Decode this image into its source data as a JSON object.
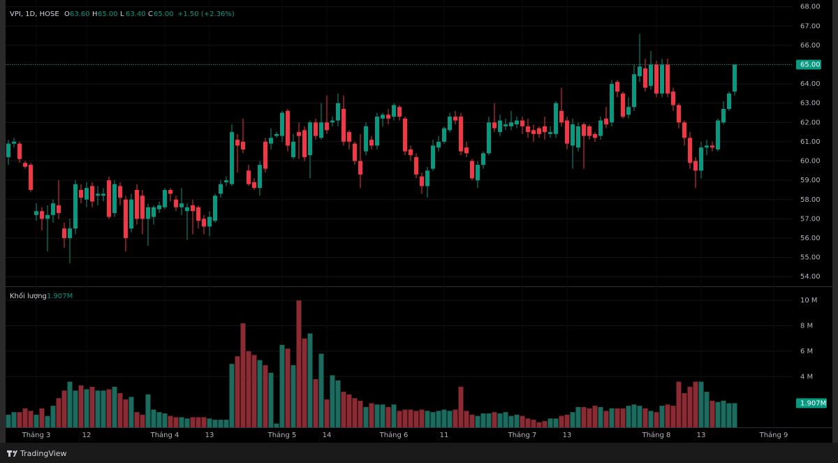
{
  "chart_data": {
    "type": "candlestick",
    "title": "VPI, 1D, HOSE",
    "header": [
      {
        "key": "O",
        "value": "63.60"
      },
      {
        "key": "H",
        "value": "65.00"
      },
      {
        "key": "L",
        "value": "63.40"
      },
      {
        "key": "C",
        "value": "65.00"
      }
    ],
    "change": "+1.50 (+2.36%)",
    "open": [
      60.2,
      60.9,
      60.9,
      59.9,
      59.8,
      57.2,
      57.4,
      57.0,
      57.2,
      57.7,
      56.5,
      56.0,
      56.5,
      58.5,
      58.0,
      58.7,
      58.2,
      58.2,
      59.0,
      57.3,
      58.7,
      58.0,
      56.5,
      58.5,
      58.2,
      57.0,
      57.1,
      57.5,
      57.6,
      58.5,
      58.0,
      57.6,
      57.4,
      57.7,
      57.6,
      57.0,
      56.6,
      56.9,
      58.3,
      58.9,
      58.8,
      61.1,
      61.0,
      59.5,
      58.9,
      58.6,
      61.0,
      60.9,
      61.3,
      61.3,
      62.6,
      60.2,
      61.5,
      61.6,
      60.3,
      62.0,
      61.2,
      62.0,
      62.0,
      62.1,
      62.7,
      61.5,
      60.9,
      60.0,
      60.5,
      61.1,
      60.8,
      62.2,
      62.4,
      62.3,
      62.8,
      62.2,
      60.6,
      60.2,
      59.2,
      58.7,
      59.6,
      60.7,
      61.0,
      61.6,
      62.3,
      62.3,
      60.7,
      60.0,
      59.0,
      59.8,
      60.4,
      62.0,
      61.5,
      61.8,
      61.8,
      61.9,
      62.1,
      61.8,
      61.6,
      61.7,
      61.8,
      61.4,
      61.4,
      62.6,
      62.1,
      60.8,
      60.7,
      61.9,
      61.8,
      61.4,
      61.3,
      62.2,
      62.0,
      64.1,
      63.5,
      62.4,
      62.8,
      64.4,
      64.8,
      63.9,
      65.0,
      63.5,
      65.0,
      63.6,
      62.9,
      62.0,
      61.2,
      60.0,
      59.5,
      60.7,
      60.8,
      60.6,
      62.0,
      62.7,
      63.6
    ],
    "high": [
      61.1,
      61.2,
      61.0,
      60.0,
      59.9,
      57.8,
      57.6,
      57.7,
      58.0,
      59.0,
      56.8,
      57.0,
      59.0,
      58.8,
      58.9,
      58.9,
      58.7,
      58.6,
      59.2,
      59.0,
      58.9,
      58.2,
      58.3,
      58.8,
      58.5,
      57.8,
      57.7,
      57.9,
      58.6,
      58.6,
      58.2,
      58.6,
      57.8,
      58.0,
      57.7,
      57.2,
      57.4,
      58.3,
      59.0,
      59.2,
      61.9,
      61.4,
      62.2,
      59.8,
      59.1,
      60.0,
      61.2,
      61.7,
      61.5,
      62.6,
      62.7,
      61.4,
      62.0,
      61.8,
      62.1,
      62.2,
      63.0,
      63.4,
      62.3,
      63.5,
      63.4,
      61.6,
      61.0,
      61.4,
      62.0,
      61.3,
      62.5,
      62.5,
      62.7,
      63.0,
      62.9,
      62.3,
      60.8,
      60.4,
      59.4,
      59.7,
      61.1,
      61.3,
      61.8,
      62.5,
      62.6,
      62.5,
      61.0,
      60.1,
      60.0,
      60.5,
      62.3,
      63.0,
      62.4,
      62.2,
      62.6,
      62.3,
      62.3,
      62.2,
      61.9,
      61.8,
      62.3,
      61.8,
      63.1,
      63.8,
      62.3,
      62.2,
      62.0,
      62.0,
      61.9,
      61.5,
      62.3,
      62.8,
      64.2,
      64.2,
      63.6,
      63.3,
      65.0,
      66.6,
      65.3,
      65.7,
      65.2,
      65.3,
      65.3,
      63.8,
      63.0,
      62.1,
      61.5,
      60.2,
      61.0,
      61.1,
      61.0,
      62.2,
      63.1,
      63.6,
      65.0
    ],
    "low": [
      59.8,
      60.7,
      59.9,
      59.6,
      58.4,
      56.9,
      56.4,
      55.3,
      56.8,
      57.0,
      55.5,
      54.7,
      56.2,
      57.8,
      57.6,
      57.6,
      57.7,
      57.9,
      57.0,
      57.1,
      57.7,
      55.3,
      56.3,
      56.7,
      56.2,
      55.6,
      56.7,
      57.3,
      57.5,
      57.9,
      57.4,
      57.2,
      55.9,
      56.2,
      56.5,
      56.2,
      56.1,
      56.8,
      58.1,
      58.7,
      58.7,
      59.4,
      60.4,
      58.7,
      58.5,
      58.2,
      59.4,
      60.6,
      61.2,
      61.0,
      60.5,
      60.1,
      60.1,
      60.0,
      59.1,
      61.1,
      61.1,
      61.4,
      61.8,
      61.8,
      60.8,
      60.6,
      59.8,
      58.6,
      60.3,
      60.6,
      60.6,
      61.8,
      61.9,
      62.1,
      62.1,
      60.3,
      60.0,
      59.1,
      58.3,
      58.1,
      59.5,
      60.5,
      60.9,
      61.5,
      61.9,
      60.3,
      60.2,
      59.0,
      58.6,
      59.6,
      60.3,
      61.5,
      61.3,
      61.6,
      61.6,
      61.7,
      61.4,
      61.2,
      61.0,
      61.2,
      61.1,
      61.2,
      61.2,
      61.8,
      60.6,
      59.6,
      60.5,
      59.6,
      61.1,
      61.0,
      61.1,
      61.7,
      61.8,
      63.3,
      62.2,
      62.2,
      62.6,
      64.1,
      63.6,
      63.7,
      63.3,
      63.3,
      63.3,
      62.6,
      61.7,
      60.8,
      59.6,
      58.6,
      59.1,
      60.3,
      60.5,
      60.5,
      61.9,
      62.6,
      63.4
    ],
    "close": [
      60.9,
      61.0,
      60.1,
      59.7,
      58.5,
      57.4,
      57.0,
      57.2,
      57.8,
      57.3,
      56.0,
      56.5,
      58.8,
      58.1,
      58.6,
      57.9,
      58.3,
      58.3,
      57.1,
      58.8,
      58.1,
      56.0,
      58.0,
      57.0,
      57.0,
      57.6,
      57.6,
      57.7,
      58.5,
      58.3,
      57.6,
      57.8,
      57.6,
      57.4,
      56.9,
      56.6,
      57.1,
      58.2,
      58.8,
      59.0,
      61.5,
      60.8,
      60.6,
      58.8,
      58.6,
      59.8,
      59.6,
      61.2,
      61.4,
      62.5,
      60.8,
      61.0,
      61.3,
      60.2,
      62.0,
      61.3,
      62.0,
      61.6,
      62.1,
      63.0,
      61.0,
      61.0,
      60.0,
      59.3,
      61.8,
      60.8,
      62.3,
      62.4,
      62.2,
      62.9,
      62.3,
      60.5,
      60.3,
      59.3,
      58.7,
      59.5,
      60.8,
      61.0,
      61.7,
      62.3,
      62.1,
      60.5,
      60.4,
      59.1,
      59.8,
      60.4,
      62.0,
      61.7,
      62.1,
      61.9,
      62.0,
      62.1,
      61.8,
      61.5,
      61.4,
      61.4,
      61.5,
      61.5,
      63.0,
      62.0,
      60.9,
      61.9,
      61.8,
      61.3,
      61.3,
      61.2,
      62.1,
      61.9,
      64.0,
      63.6,
      62.3,
      62.8,
      64.5,
      64.9,
      63.8,
      65.0,
      63.5,
      65.0,
      63.5,
      62.9,
      62.0,
      61.2,
      59.9,
      59.5,
      60.7,
      60.8,
      60.7,
      62.1,
      62.7,
      63.5,
      65.0
    ],
    "volume": [
      1.0,
      1.2,
      1.2,
      1.5,
      1.3,
      1.0,
      1.5,
      0.9,
      1.7,
      2.3,
      2.9,
      3.6,
      2.9,
      3.3,
      3.0,
      3.2,
      2.9,
      2.9,
      3.0,
      3.2,
      2.7,
      2.2,
      2.4,
      1.2,
      1.0,
      2.6,
      1.4,
      1.2,
      1.1,
      0.9,
      0.8,
      0.8,
      0.7,
      0.8,
      0.8,
      0.8,
      0.7,
      0.6,
      0.6,
      0.6,
      5.0,
      5.6,
      8.2,
      6.0,
      5.7,
      5.3,
      4.9,
      4.3,
      0.3,
      6.5,
      6.2,
      4.9,
      10.0,
      7.0,
      7.4,
      3.8,
      5.8,
      2.2,
      4.1,
      3.7,
      2.8,
      2.6,
      2.3,
      2.1,
      1.6,
      1.9,
      1.8,
      1.8,
      1.6,
      1.8,
      1.3,
      1.4,
      1.4,
      1.3,
      1.4,
      1.3,
      1.2,
      1.3,
      1.4,
      1.3,
      1.4,
      3.2,
      1.3,
      1.0,
      0.9,
      1.1,
      1.1,
      1.2,
      1.1,
      1.2,
      0.9,
      1.0,
      0.9,
      0.7,
      0.6,
      0.4,
      0.5,
      0.7,
      0.7,
      0.9,
      1.0,
      1.2,
      1.6,
      1.6,
      1.5,
      1.7,
      1.6,
      1.3,
      1.5,
      1.5,
      1.5,
      1.7,
      1.8,
      1.7,
      1.5,
      1.3,
      1.2,
      1.7,
      1.8,
      1.7,
      3.6,
      2.7,
      3.2,
      3.6,
      3.6,
      2.8,
      2.1,
      2.0,
      2.1,
      1.9,
      1.907
    ],
    "volume_title": "Khối lượng",
    "volume_label": "1.907M",
    "last_price_label": "65.00",
    "ylim": [
      53.5,
      68.35
    ],
    "yticks": [
      {
        "value": 54,
        "label": "54.00"
      },
      {
        "value": 55,
        "label": "55.00"
      },
      {
        "value": 56,
        "label": "56.00"
      },
      {
        "value": 57,
        "label": "57.00"
      },
      {
        "value": 58,
        "label": "58.00"
      },
      {
        "value": 59,
        "label": "59.00"
      },
      {
        "value": 60,
        "label": "60.00"
      },
      {
        "value": 61,
        "label": "61.00"
      },
      {
        "value": 62,
        "label": "62.00"
      },
      {
        "value": 63,
        "label": "63.00"
      },
      {
        "value": 64,
        "label": "64.00"
      },
      {
        "value": 65,
        "label": "65.00"
      },
      {
        "value": 66,
        "label": "66.00"
      },
      {
        "value": 67,
        "label": "67.00"
      },
      {
        "value": 68,
        "label": "68.00"
      }
    ],
    "y2lim": [
      0,
      11
    ],
    "y2ticks": [
      {
        "value": 4,
        "label": "4 M"
      },
      {
        "value": 6,
        "label": "6 M"
      },
      {
        "value": 8,
        "label": "8 M"
      },
      {
        "value": 10,
        "label": "10 M"
      }
    ],
    "xticks": [
      {
        "value": 5,
        "label": "Tháng 3"
      },
      {
        "value": 14,
        "label": "12"
      },
      {
        "value": 28,
        "label": "Tháng 4"
      },
      {
        "value": 36,
        "label": "13"
      },
      {
        "value": 49,
        "label": "Tháng 5"
      },
      {
        "value": 57,
        "label": "14"
      },
      {
        "value": 69,
        "label": "Tháng 6"
      },
      {
        "value": 78,
        "label": "11"
      },
      {
        "value": 92,
        "label": "Tháng 7"
      },
      {
        "value": 100,
        "label": "13"
      },
      {
        "value": 116,
        "label": "Tháng 8"
      },
      {
        "value": 124,
        "label": "13"
      },
      {
        "value": 137,
        "label": "Tháng 9"
      }
    ],
    "grid": true,
    "up_color": "#089981",
    "down_color": "#f23645",
    "up_volume_color": "#1b6b5f",
    "down_volume_color": "#8c2a33",
    "brand": "TradingView"
  }
}
